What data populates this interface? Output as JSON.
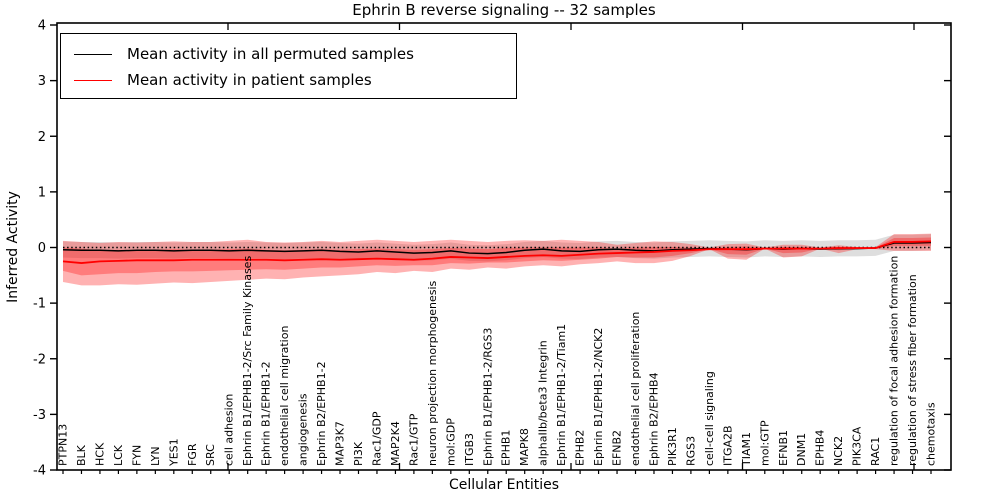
{
  "chart_data": {
    "type": "line",
    "title": "Ephrin B reverse signaling -- 32 samples",
    "xlabel": "Cellular Entities",
    "ylabel": "Inferred Activity",
    "ylim": [
      -4,
      4
    ],
    "yticks": [
      4,
      3,
      2,
      1,
      0,
      -1,
      -2,
      -3,
      -4
    ],
    "grid": false,
    "legend_position": "upper left",
    "zero_reference_line": {
      "y": 0,
      "style": "dotted",
      "color": "#000000"
    },
    "categories": [
      "PTPN13",
      "BLK",
      "HCK",
      "LCK",
      "FYN",
      "LYN",
      "YES1",
      "FGR",
      "SRC",
      "cell adhesion",
      "Ephrin B1/EPHB1-2/Src Family Kinases",
      "Ephrin B1/EPHB1-2",
      "endothelial cell migration",
      "angiogenesis",
      "Ephrin B2/EPHB1-2",
      "MAP3K7",
      "PI3K",
      "Rac1/GDP",
      "MAP2K4",
      "Rac1/GTP",
      "neuron projection morphogenesis",
      "mol:GDP",
      "ITGB3",
      "Ephrin B1/EPHB1-2/RGS3",
      "EPHB1",
      "MAPK8",
      "alphaIIb/beta3 Integrin",
      "Ephrin B1/EPHB1-2/Tiam1",
      "EPHB2",
      "Ephrin B1/EPHB1-2/NCK2",
      "EFNB2",
      "endothelial cell proliferation",
      "Ephrin B2/EPHB4",
      "PIK3R1",
      "RGS3",
      "cell-cell signaling",
      "ITGA2B",
      "TIAM1",
      "mol:GTP",
      "EFNB1",
      "DNM1",
      "EPHB4",
      "NCK2",
      "PIK3CA",
      "RAC1",
      "regulation of focal adhesion formation",
      "regulation of stress fiber formation",
      "chemotaxis"
    ],
    "series": [
      {
        "name": "Mean activity in all permuted samples",
        "color": "#000000",
        "line_style": "solid",
        "values": [
          -0.04,
          -0.05,
          -0.05,
          -0.06,
          -0.05,
          -0.05,
          -0.06,
          -0.05,
          -0.05,
          -0.06,
          -0.05,
          -0.06,
          -0.07,
          -0.06,
          -0.05,
          -0.07,
          -0.08,
          -0.06,
          -0.08,
          -0.1,
          -0.09,
          -0.06,
          -0.1,
          -0.11,
          -0.09,
          -0.05,
          -0.03,
          -0.06,
          -0.07,
          -0.04,
          -0.03,
          -0.05,
          -0.06,
          -0.04,
          -0.03,
          -0.02,
          -0.03,
          -0.04,
          -0.02,
          -0.03,
          -0.02,
          -0.03,
          -0.02,
          -0.02,
          -0.01,
          0.08,
          0.08,
          0.09
        ]
      },
      {
        "name": "Mean activity in patient samples",
        "color": "#ff0000",
        "line_style": "solid",
        "values": [
          -0.25,
          -0.28,
          -0.25,
          -0.24,
          -0.23,
          -0.23,
          -0.23,
          -0.22,
          -0.22,
          -0.22,
          -0.22,
          -0.22,
          -0.23,
          -0.22,
          -0.21,
          -0.22,
          -0.21,
          -0.2,
          -0.21,
          -0.22,
          -0.2,
          -0.17,
          -0.18,
          -0.19,
          -0.17,
          -0.15,
          -0.14,
          -0.15,
          -0.13,
          -0.11,
          -0.1,
          -0.09,
          -0.08,
          -0.06,
          -0.05,
          -0.03,
          -0.03,
          -0.03,
          -0.02,
          -0.02,
          -0.02,
          -0.02,
          -0.01,
          -0.01,
          -0.01,
          0.1,
          0.1,
          0.11
        ]
      }
    ],
    "bands": [
      {
        "name": "permuted-samples-spread",
        "color": "#888888",
        "opacity": 0.28,
        "upper": [
          0.11,
          0.1,
          0.1,
          0.09,
          0.1,
          0.1,
          0.09,
          0.1,
          0.1,
          0.09,
          0.1,
          0.09,
          0.08,
          0.09,
          0.1,
          0.08,
          0.07,
          0.09,
          0.07,
          0.05,
          0.06,
          0.09,
          0.05,
          0.04,
          0.06,
          0.1,
          0.12,
          0.09,
          0.08,
          0.11,
          0.12,
          0.1,
          0.09,
          0.11,
          0.12,
          0.13,
          0.12,
          0.11,
          0.13,
          0.12,
          0.13,
          0.12,
          0.13,
          0.13,
          0.14,
          0.23,
          0.23,
          0.24
        ],
        "lower": [
          -0.18,
          -0.19,
          -0.19,
          -0.2,
          -0.19,
          -0.19,
          -0.2,
          -0.19,
          -0.19,
          -0.2,
          -0.19,
          -0.2,
          -0.21,
          -0.2,
          -0.19,
          -0.21,
          -0.22,
          -0.2,
          -0.22,
          -0.24,
          -0.23,
          -0.2,
          -0.24,
          -0.25,
          -0.23,
          -0.19,
          -0.17,
          -0.2,
          -0.21,
          -0.18,
          -0.17,
          -0.19,
          -0.2,
          -0.18,
          -0.17,
          -0.16,
          -0.17,
          -0.18,
          -0.16,
          -0.17,
          -0.16,
          -0.17,
          -0.16,
          -0.16,
          -0.15,
          -0.06,
          -0.06,
          -0.05
        ]
      },
      {
        "name": "patient-samples-spread-outer",
        "color": "#ff0000",
        "opacity": 0.3,
        "upper": [
          0.12,
          0.1,
          0.08,
          0.1,
          0.09,
          0.1,
          0.11,
          0.1,
          0.1,
          0.12,
          0.14,
          0.1,
          0.09,
          0.1,
          0.12,
          0.1,
          0.12,
          0.14,
          0.12,
          0.1,
          0.12,
          0.14,
          0.12,
          0.1,
          0.12,
          0.13,
          0.12,
          0.14,
          0.12,
          0.1,
          0.05,
          0.08,
          0.11,
          0.1,
          0.06,
          0.0,
          0.06,
          0.07,
          0.0,
          0.05,
          0.05,
          0.0,
          0.04,
          0.01,
          0.01,
          0.24,
          0.24,
          0.25
        ],
        "lower": [
          -0.62,
          -0.68,
          -0.68,
          -0.66,
          -0.67,
          -0.65,
          -0.63,
          -0.64,
          -0.62,
          -0.6,
          -0.58,
          -0.56,
          -0.57,
          -0.54,
          -0.52,
          -0.5,
          -0.48,
          -0.44,
          -0.46,
          -0.42,
          -0.44,
          -0.38,
          -0.4,
          -0.36,
          -0.38,
          -0.34,
          -0.32,
          -0.34,
          -0.3,
          -0.28,
          -0.25,
          -0.28,
          -0.28,
          -0.24,
          -0.15,
          -0.03,
          -0.2,
          -0.22,
          -0.02,
          -0.18,
          -0.16,
          -0.02,
          -0.1,
          -0.03,
          -0.03,
          -0.06,
          -0.06,
          -0.06
        ]
      },
      {
        "name": "patient-samples-spread-inner",
        "color": "#ff0000",
        "opacity": 0.3,
        "upper": [
          0.0,
          -0.02,
          -0.05,
          -0.04,
          -0.05,
          -0.04,
          -0.03,
          -0.04,
          -0.04,
          -0.03,
          -0.02,
          -0.04,
          -0.05,
          -0.04,
          -0.03,
          -0.04,
          -0.03,
          -0.02,
          -0.03,
          -0.04,
          -0.03,
          -0.01,
          -0.02,
          -0.03,
          -0.01,
          0.0,
          0.0,
          0.0,
          0.0,
          0.0,
          -0.02,
          0.0,
          0.01,
          0.01,
          0.0,
          -0.02,
          0.01,
          0.02,
          -0.01,
          0.01,
          0.01,
          -0.01,
          0.01,
          0.0,
          0.0,
          0.17,
          0.17,
          0.18
        ],
        "lower": [
          -0.42,
          -0.5,
          -0.48,
          -0.46,
          -0.46,
          -0.44,
          -0.43,
          -0.43,
          -0.42,
          -0.41,
          -0.4,
          -0.39,
          -0.4,
          -0.38,
          -0.36,
          -0.36,
          -0.34,
          -0.32,
          -0.33,
          -0.32,
          -0.32,
          -0.28,
          -0.29,
          -0.27,
          -0.27,
          -0.25,
          -0.23,
          -0.24,
          -0.22,
          -0.2,
          -0.17,
          -0.18,
          -0.18,
          -0.15,
          -0.1,
          -0.03,
          -0.12,
          -0.13,
          -0.02,
          -0.1,
          -0.09,
          -0.02,
          -0.05,
          -0.02,
          -0.02,
          0.03,
          0.03,
          0.03
        ]
      }
    ]
  }
}
